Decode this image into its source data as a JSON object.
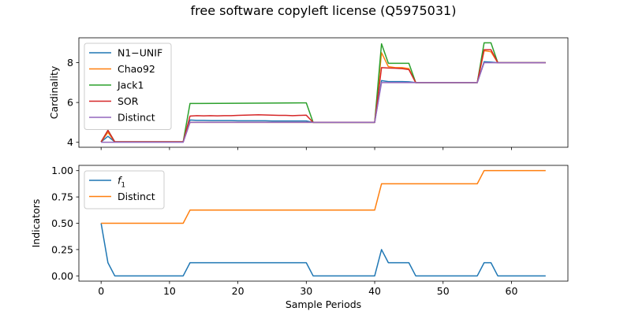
{
  "figure_title": "free software copyleft license (Q5975031)",
  "chart_data": [
    {
      "type": "line",
      "ylabel": "Cardinality",
      "xlabel": "",
      "xlim": [
        -3.25,
        68.25
      ],
      "ylim": [
        3.75,
        9.25
      ],
      "xticks": [
        0,
        10,
        20,
        30,
        40,
        50,
        60
      ],
      "yticks": [
        4,
        6,
        8
      ],
      "show_xtick_labels": false,
      "legend_position": "upper-left",
      "series": [
        {
          "name": "N1−UNIF",
          "color": "#1f77b4",
          "points": [
            [
              0,
              4.02
            ],
            [
              1,
              4.3
            ],
            [
              2,
              4.02
            ],
            [
              3,
              4.02
            ],
            [
              4,
              4.02
            ],
            [
              5,
              4.02
            ],
            [
              6,
              4.02
            ],
            [
              7,
              4.02
            ],
            [
              8,
              4.02
            ],
            [
              9,
              4.02
            ],
            [
              10,
              4.02
            ],
            [
              11,
              4.02
            ],
            [
              12,
              4.02
            ],
            [
              13,
              5.12
            ],
            [
              14,
              5.1
            ],
            [
              15,
              5.1
            ],
            [
              16,
              5.09
            ],
            [
              17,
              5.09
            ],
            [
              18,
              5.09
            ],
            [
              19,
              5.09
            ],
            [
              20,
              5.08
            ],
            [
              21,
              5.08
            ],
            [
              22,
              5.08
            ],
            [
              23,
              5.08
            ],
            [
              24,
              5.08
            ],
            [
              25,
              5.07
            ],
            [
              26,
              5.07
            ],
            [
              27,
              5.07
            ],
            [
              28,
              5.07
            ],
            [
              29,
              5.07
            ],
            [
              30,
              5.07
            ],
            [
              31,
              5.0
            ],
            [
              40,
              5.0
            ],
            [
              41,
              7.1
            ],
            [
              42,
              7.05
            ],
            [
              43,
              7.05
            ],
            [
              44,
              7.05
            ],
            [
              45,
              7.04
            ],
            [
              46,
              7.0
            ],
            [
              55,
              7.0
            ],
            [
              56,
              8.05
            ],
            [
              57,
              8.03
            ],
            [
              58,
              8.0
            ],
            [
              65,
              8.0
            ]
          ]
        },
        {
          "name": "Chao92",
          "color": "#ff7f0e",
          "points": [
            [
              0,
              4.02
            ],
            [
              1,
              4.5
            ],
            [
              2,
              4.02
            ],
            [
              3,
              4.02
            ],
            [
              12,
              4.02
            ],
            [
              13,
              5.0
            ],
            [
              30,
              5.0
            ],
            [
              31,
              5.0
            ],
            [
              40,
              5.0
            ],
            [
              41,
              8.5
            ],
            [
              42,
              7.8
            ],
            [
              43,
              7.75
            ],
            [
              44,
              7.75
            ],
            [
              45,
              7.7
            ],
            [
              46,
              7.0
            ],
            [
              55,
              7.0
            ],
            [
              56,
              8.6
            ],
            [
              57,
              8.55
            ],
            [
              58,
              8.0
            ],
            [
              65,
              8.0
            ]
          ]
        },
        {
          "name": "Jack1",
          "color": "#2ca02c",
          "points": [
            [
              0,
              4.02
            ],
            [
              1,
              4.6
            ],
            [
              2,
              4.02
            ],
            [
              3,
              4.02
            ],
            [
              12,
              4.02
            ],
            [
              13,
              5.95
            ],
            [
              20,
              5.96
            ],
            [
              25,
              5.97
            ],
            [
              30,
              5.98
            ],
            [
              31,
              5.0
            ],
            [
              40,
              5.0
            ],
            [
              41,
              8.95
            ],
            [
              42,
              7.97
            ],
            [
              43,
              7.97
            ],
            [
              44,
              7.97
            ],
            [
              45,
              7.97
            ],
            [
              46,
              7.0
            ],
            [
              55,
              7.0
            ],
            [
              56,
              9.0
            ],
            [
              57,
              9.0
            ],
            [
              58,
              8.0
            ],
            [
              65,
              8.0
            ]
          ]
        },
        {
          "name": "SOR",
          "color": "#d62728",
          "points": [
            [
              0,
              4.02
            ],
            [
              1,
              4.6
            ],
            [
              2,
              4.02
            ],
            [
              3,
              4.02
            ],
            [
              12,
              4.02
            ],
            [
              13,
              5.32
            ],
            [
              14,
              5.34
            ],
            [
              15,
              5.33
            ],
            [
              16,
              5.34
            ],
            [
              17,
              5.33
            ],
            [
              18,
              5.34
            ],
            [
              19,
              5.34
            ],
            [
              20,
              5.35
            ],
            [
              21,
              5.36
            ],
            [
              22,
              5.37
            ],
            [
              23,
              5.38
            ],
            [
              24,
              5.37
            ],
            [
              25,
              5.36
            ],
            [
              26,
              5.35
            ],
            [
              27,
              5.35
            ],
            [
              28,
              5.34
            ],
            [
              29,
              5.35
            ],
            [
              30,
              5.36
            ],
            [
              31,
              5.0
            ],
            [
              40,
              5.0
            ],
            [
              41,
              7.75
            ],
            [
              42,
              7.73
            ],
            [
              43,
              7.72
            ],
            [
              44,
              7.7
            ],
            [
              45,
              7.65
            ],
            [
              46,
              7.0
            ],
            [
              55,
              7.0
            ],
            [
              56,
              8.65
            ],
            [
              57,
              8.65
            ],
            [
              58,
              8.0
            ],
            [
              65,
              8.0
            ]
          ]
        },
        {
          "name": "Distinct",
          "color": "#9467bd",
          "points": [
            [
              0,
              4.0
            ],
            [
              1,
              4.0
            ],
            [
              12,
              4.0
            ],
            [
              13,
              5.0
            ],
            [
              31,
              5.0
            ],
            [
              40,
              5.0
            ],
            [
              41,
              7.0
            ],
            [
              55,
              7.0
            ],
            [
              56,
              8.0
            ],
            [
              65,
              8.0
            ]
          ]
        }
      ]
    },
    {
      "type": "line",
      "ylabel": "Indicators",
      "xlabel": "Sample Periods",
      "xlim": [
        -3.25,
        68.25
      ],
      "ylim": [
        -0.05,
        1.05
      ],
      "xticks": [
        0,
        10,
        20,
        30,
        40,
        50,
        60
      ],
      "yticks": [
        0.0,
        0.25,
        0.5,
        0.75,
        1.0
      ],
      "ytick_labels": [
        "0.00",
        "0.25",
        "0.50",
        "0.75",
        "1.00"
      ],
      "show_xtick_labels": true,
      "legend_position": "upper-left",
      "series": [
        {
          "name": "f",
          "name_subscript": "1",
          "color": "#1f77b4",
          "points": [
            [
              0,
              0.5
            ],
            [
              1,
              0.125
            ],
            [
              2,
              0.0
            ],
            [
              12,
              0.0
            ],
            [
              13,
              0.125
            ],
            [
              30,
              0.125
            ],
            [
              31,
              0.0
            ],
            [
              40,
              0.0
            ],
            [
              41,
              0.25
            ],
            [
              42,
              0.125
            ],
            [
              45,
              0.125
            ],
            [
              46,
              0.0
            ],
            [
              55,
              0.0
            ],
            [
              56,
              0.125
            ],
            [
              57,
              0.125
            ],
            [
              58,
              0.0
            ],
            [
              65,
              0.0
            ]
          ]
        },
        {
          "name": "Distinct",
          "color": "#ff7f0e",
          "points": [
            [
              0,
              0.5
            ],
            [
              12,
              0.5
            ],
            [
              13,
              0.625
            ],
            [
              40,
              0.625
            ],
            [
              41,
              0.875
            ],
            [
              55,
              0.875
            ],
            [
              56,
              1.0
            ],
            [
              65,
              1.0
            ]
          ]
        }
      ]
    }
  ]
}
